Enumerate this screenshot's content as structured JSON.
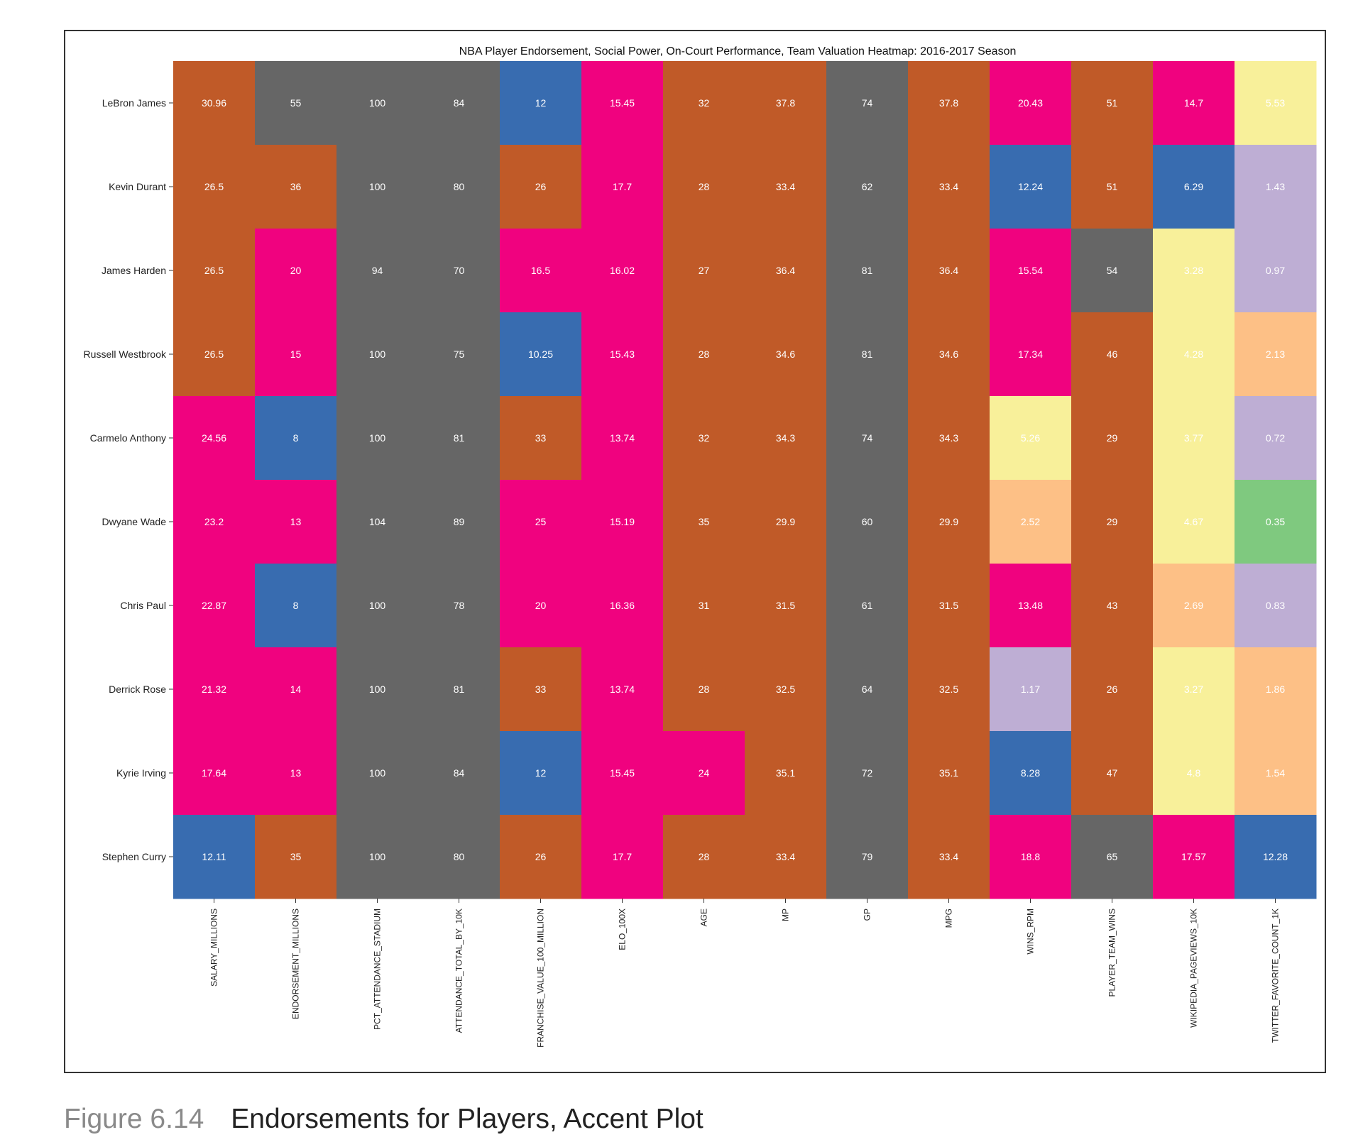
{
  "caption": {
    "number": "Figure 6.14",
    "text": "Endorsements for Players, Accent Plot"
  },
  "chart_data": {
    "type": "heatmap",
    "title": "NBA Player Endorsement, Social Power, On-Court Performance, Team Valuation Heatmap:  2016-2017 Season",
    "colormap": "Accent",
    "rows": [
      "LeBron James",
      "Kevin Durant",
      "James Harden",
      "Russell Westbrook",
      "Carmelo Anthony",
      "Dwyane Wade",
      "Chris Paul",
      "Derrick Rose",
      "Kyrie Irving",
      "Stephen Curry"
    ],
    "columns": [
      "SALARY_MILLIONS",
      "ENDORSEMENT_MILLIONS",
      "PCT_ATTENDANCE_STADIUM",
      "ATTENDANCE_TOTAL_BY_10K",
      "FRANCHISE_VALUE_100_MILLION",
      "ELO_100X",
      "AGE",
      "MP",
      "GP",
      "MPG",
      "WINS_RPM",
      "PLAYER_TEAM_WINS",
      "WIKIPEDIA_PAGEVIEWS_10K",
      "TWITTER_FAVORITE_COUNT_1K"
    ],
    "values": [
      [
        30.96,
        55,
        100,
        84,
        12,
        15.45,
        32,
        37.8,
        74,
        37.8,
        20.43,
        51,
        14.7,
        5.53
      ],
      [
        26.5,
        36,
        100,
        80,
        26,
        17.7,
        28,
        33.4,
        62,
        33.4,
        12.24,
        51,
        6.29,
        1.43
      ],
      [
        26.5,
        20,
        94,
        70,
        16.5,
        16.02,
        27,
        36.4,
        81,
        36.4,
        15.54,
        54,
        3.28,
        0.97
      ],
      [
        26.5,
        15,
        100,
        75,
        10.25,
        15.43,
        28,
        34.6,
        81,
        34.6,
        17.34,
        46,
        4.28,
        2.13
      ],
      [
        24.56,
        8,
        100,
        81,
        33,
        13.74,
        32,
        34.3,
        74,
        34.3,
        5.26,
        29,
        3.77,
        0.72
      ],
      [
        23.2,
        13,
        104,
        89,
        25,
        15.19,
        35,
        29.9,
        60,
        29.9,
        2.52,
        29,
        4.67,
        0.35
      ],
      [
        22.87,
        8,
        100,
        78,
        20,
        16.36,
        31,
        31.5,
        61,
        31.5,
        13.48,
        43,
        2.69,
        0.83
      ],
      [
        21.32,
        14,
        100,
        81,
        33,
        13.74,
        28,
        32.5,
        64,
        32.5,
        1.17,
        26,
        3.27,
        1.86
      ],
      [
        17.64,
        13,
        100,
        84,
        12,
        15.45,
        24,
        35.1,
        72,
        35.1,
        8.28,
        47,
        4.8,
        1.54
      ],
      [
        12.11,
        35,
        100,
        80,
        26,
        17.7,
        28,
        33.4,
        79,
        33.4,
        18.8,
        65,
        17.57,
        12.28
      ]
    ],
    "cell_colors": [
      [
        "#c05a28",
        "#666666",
        "#666666",
        "#666666",
        "#386cb0",
        "#f0027f",
        "#c05a28",
        "#c05a28",
        "#666666",
        "#c05a28",
        "#f0027f",
        "#c05a28",
        "#f0027f",
        "#f8f09a"
      ],
      [
        "#c05a28",
        "#c05a28",
        "#666666",
        "#666666",
        "#c05a28",
        "#f0027f",
        "#c05a28",
        "#c05a28",
        "#666666",
        "#c05a28",
        "#386cb0",
        "#c05a28",
        "#386cb0",
        "#beaed4"
      ],
      [
        "#c05a28",
        "#f0027f",
        "#666666",
        "#666666",
        "#f0027f",
        "#f0027f",
        "#c05a28",
        "#c05a28",
        "#666666",
        "#c05a28",
        "#f0027f",
        "#666666",
        "#f8f09a",
        "#beaed4"
      ],
      [
        "#c05a28",
        "#f0027f",
        "#666666",
        "#666666",
        "#386cb0",
        "#f0027f",
        "#c05a28",
        "#c05a28",
        "#666666",
        "#c05a28",
        "#f0027f",
        "#c05a28",
        "#f8f09a",
        "#fdc086"
      ],
      [
        "#f0027f",
        "#386cb0",
        "#666666",
        "#666666",
        "#c05a28",
        "#f0027f",
        "#c05a28",
        "#c05a28",
        "#666666",
        "#c05a28",
        "#f8f09a",
        "#c05a28",
        "#f8f09a",
        "#beaed4"
      ],
      [
        "#f0027f",
        "#f0027f",
        "#666666",
        "#666666",
        "#f0027f",
        "#f0027f",
        "#c05a28",
        "#c05a28",
        "#666666",
        "#c05a28",
        "#fdc086",
        "#c05a28",
        "#f8f09a",
        "#7fc97f"
      ],
      [
        "#f0027f",
        "#386cb0",
        "#666666",
        "#666666",
        "#f0027f",
        "#f0027f",
        "#c05a28",
        "#c05a28",
        "#666666",
        "#c05a28",
        "#f0027f",
        "#c05a28",
        "#fdc086",
        "#beaed4"
      ],
      [
        "#f0027f",
        "#f0027f",
        "#666666",
        "#666666",
        "#c05a28",
        "#f0027f",
        "#c05a28",
        "#c05a28",
        "#666666",
        "#c05a28",
        "#beaed4",
        "#c05a28",
        "#f8f09a",
        "#fdc086"
      ],
      [
        "#f0027f",
        "#f0027f",
        "#666666",
        "#666666",
        "#386cb0",
        "#f0027f",
        "#f0027f",
        "#c05a28",
        "#666666",
        "#c05a28",
        "#386cb0",
        "#c05a28",
        "#f8f09a",
        "#fdc086"
      ],
      [
        "#386cb0",
        "#c05a28",
        "#666666",
        "#666666",
        "#c05a28",
        "#f0027f",
        "#c05a28",
        "#c05a28",
        "#666666",
        "#c05a28",
        "#f0027f",
        "#666666",
        "#f0027f",
        "#386cb0"
      ]
    ],
    "value_labels": [
      [
        "30.96",
        "55",
        "100",
        "84",
        "12",
        "15.45",
        "32",
        "37.8",
        "74",
        "37.8",
        "20.43",
        "51",
        "14.7",
        "5.53"
      ],
      [
        "26.5",
        "36",
        "100",
        "80",
        "26",
        "17.7",
        "28",
        "33.4",
        "62",
        "33.4",
        "12.24",
        "51",
        "6.29",
        "1.43"
      ],
      [
        "26.5",
        "20",
        "94",
        "70",
        "16.5",
        "16.02",
        "27",
        "36.4",
        "81",
        "36.4",
        "15.54",
        "54",
        "3.28",
        "0.97"
      ],
      [
        "26.5",
        "15",
        "100",
        "75",
        "10.25",
        "15.43",
        "28",
        "34.6",
        "81",
        "34.6",
        "17.34",
        "46",
        "4.28",
        "2.13"
      ],
      [
        "24.56",
        "8",
        "100",
        "81",
        "33",
        "13.74",
        "32",
        "34.3",
        "74",
        "34.3",
        "5.26",
        "29",
        "3.77",
        "0.72"
      ],
      [
        "23.2",
        "13",
        "104",
        "89",
        "25",
        "15.19",
        "35",
        "29.9",
        "60",
        "29.9",
        "2.52",
        "29",
        "4.67",
        "0.35"
      ],
      [
        "22.87",
        "8",
        "100",
        "78",
        "20",
        "16.36",
        "31",
        "31.5",
        "61",
        "31.5",
        "13.48",
        "43",
        "2.69",
        "0.83"
      ],
      [
        "21.32",
        "14",
        "100",
        "81",
        "33",
        "13.74",
        "28",
        "32.5",
        "64",
        "32.5",
        "1.17",
        "26",
        "3.27",
        "1.86"
      ],
      [
        "17.64",
        "13",
        "100",
        "84",
        "12",
        "15.45",
        "24",
        "35.1",
        "72",
        "35.1",
        "8.28",
        "47",
        "4.8",
        "1.54"
      ],
      [
        "12.11",
        "35",
        "100",
        "80",
        "26",
        "17.7",
        "28",
        "33.4",
        "79",
        "33.4",
        "18.8",
        "65",
        "17.57",
        "12.28"
      ]
    ]
  }
}
